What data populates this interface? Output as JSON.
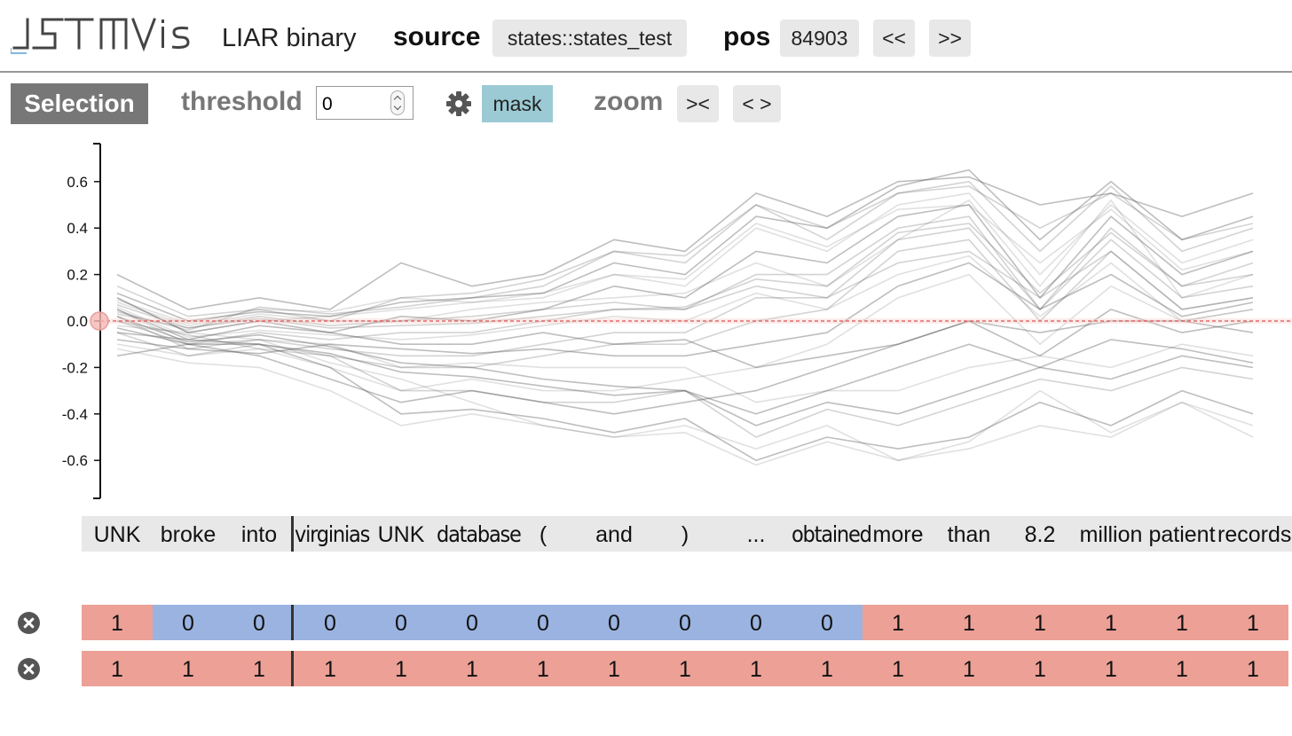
{
  "app": {
    "logo_text": "LSTMVis",
    "dataset": "LIAR binary"
  },
  "source": {
    "label": "source",
    "value": "states::states_test"
  },
  "pos": {
    "label": "pos",
    "value": "84903",
    "prev_label": "<<",
    "next_label": ">>"
  },
  "toolbar": {
    "selection_label": "Selection",
    "threshold_label": "threshold",
    "threshold_value": "0",
    "settings_icon": "gear-icon",
    "mask_label": "mask",
    "mask_color": "#9bcad4",
    "zoom_label": "zoom",
    "zoom_in_label": "><",
    "zoom_out_label": "< >"
  },
  "words": [
    "UNK",
    "broke",
    "into",
    "virginias",
    "UNK",
    "database",
    "(",
    "and",
    ")",
    "...",
    "obtained",
    "more",
    "than",
    "8.2",
    "million",
    "patient",
    "records"
  ],
  "label_rows": [
    {
      "close_icon": "close-icon",
      "values": [
        "1",
        "0",
        "0",
        "0",
        "0",
        "0",
        "0",
        "0",
        "0",
        "0",
        "0",
        "1",
        "1",
        "1",
        "1",
        "1",
        "1"
      ]
    },
    {
      "close_icon": "close-icon",
      "values": [
        "1",
        "1",
        "1",
        "1",
        "1",
        "1",
        "1",
        "1",
        "1",
        "1",
        "1",
        "1",
        "1",
        "1",
        "1",
        "1",
        "1"
      ]
    }
  ],
  "colors": {
    "label_1": "#eca096",
    "label_0": "#9ab3e0",
    "threshold_line": "#d9534f"
  },
  "chart_data": {
    "type": "line",
    "y_ticks": [
      "0.6",
      "0.4",
      "0.2",
      "0.0",
      "-0.2",
      "-0.4",
      "-0.6"
    ],
    "ylim": [
      -0.76,
      0.76
    ],
    "x": [
      "UNK",
      "broke",
      "into",
      "virginias",
      "UNK",
      "database",
      "(",
      "and",
      ")",
      "...",
      "obtained",
      "more",
      "than",
      "8.2",
      "million",
      "patient",
      "records"
    ],
    "threshold": 0.0,
    "series": [
      {
        "values": [
          0.2,
          0.05,
          0.1,
          0.05,
          0.25,
          0.15,
          0.2,
          0.35,
          0.3,
          0.55,
          0.45,
          0.6,
          0.62,
          0.5,
          0.55,
          0.45,
          0.55
        ]
      },
      {
        "values": [
          0.15,
          0.02,
          0.05,
          0.0,
          0.1,
          0.12,
          0.18,
          0.3,
          0.25,
          0.5,
          0.35,
          0.55,
          0.6,
          0.3,
          0.58,
          0.3,
          0.4
        ]
      },
      {
        "values": [
          0.1,
          -0.05,
          0.0,
          0.02,
          0.05,
          0.08,
          0.1,
          0.2,
          0.15,
          0.4,
          0.3,
          0.5,
          0.55,
          0.2,
          0.5,
          0.25,
          0.35
        ]
      },
      {
        "values": [
          0.05,
          -0.08,
          -0.02,
          -0.05,
          0.02,
          0.0,
          0.05,
          0.15,
          0.1,
          0.3,
          0.25,
          0.45,
          0.5,
          0.1,
          0.45,
          0.2,
          0.3
        ]
      },
      {
        "values": [
          0.0,
          -0.1,
          -0.05,
          -0.08,
          -0.05,
          -0.05,
          0.0,
          0.05,
          0.05,
          0.2,
          0.2,
          0.4,
          0.45,
          0.05,
          0.4,
          0.15,
          0.25
        ]
      },
      {
        "values": [
          0.08,
          -0.02,
          0.03,
          0.0,
          0.0,
          0.05,
          0.08,
          0.1,
          0.12,
          0.25,
          0.15,
          0.35,
          0.52,
          0.15,
          0.52,
          0.1,
          0.2
        ]
      },
      {
        "values": [
          0.12,
          0.0,
          0.04,
          0.02,
          0.08,
          0.1,
          0.12,
          0.25,
          0.2,
          0.45,
          0.4,
          0.58,
          0.65,
          0.35,
          0.6,
          0.35,
          0.45
        ]
      },
      {
        "values": [
          -0.05,
          -0.15,
          -0.1,
          -0.15,
          -0.2,
          -0.2,
          -0.15,
          -0.1,
          -0.1,
          0.0,
          0.05,
          0.3,
          0.35,
          0.0,
          0.3,
          0.05,
          0.1
        ]
      },
      {
        "values": [
          -0.1,
          -0.15,
          -0.12,
          -0.2,
          -0.3,
          -0.25,
          -0.3,
          -0.3,
          -0.25,
          -0.2,
          -0.1,
          0.1,
          0.2,
          -0.1,
          0.15,
          0.0,
          0.05
        ]
      },
      {
        "values": [
          -0.15,
          -0.1,
          -0.15,
          -0.25,
          -0.35,
          -0.3,
          -0.35,
          -0.4,
          -0.35,
          -0.3,
          -0.2,
          -0.1,
          0.0,
          -0.15,
          0.05,
          -0.05,
          0.0
        ]
      },
      {
        "values": [
          0.02,
          -0.12,
          -0.08,
          -0.12,
          -0.15,
          -0.15,
          -0.1,
          -0.05,
          -0.05,
          0.1,
          0.1,
          0.35,
          0.4,
          0.05,
          0.35,
          0.1,
          0.15
        ]
      },
      {
        "values": [
          -0.02,
          -0.05,
          -0.08,
          -0.18,
          -0.25,
          -0.35,
          -0.45,
          -0.5,
          -0.45,
          -0.55,
          -0.45,
          -0.6,
          -0.55,
          -0.45,
          -0.5,
          -0.35,
          -0.45
        ]
      },
      {
        "values": [
          -0.05,
          -0.08,
          -0.1,
          -0.2,
          -0.4,
          -0.38,
          -0.42,
          -0.48,
          -0.42,
          -0.6,
          -0.5,
          -0.55,
          -0.5,
          -0.35,
          -0.45,
          -0.3,
          -0.4
        ]
      },
      {
        "values": [
          0.0,
          -0.06,
          -0.12,
          -0.15,
          -0.3,
          -0.3,
          -0.35,
          -0.35,
          -0.3,
          -0.5,
          -0.38,
          -0.45,
          -0.35,
          -0.25,
          -0.3,
          -0.2,
          -0.25
        ]
      },
      {
        "values": [
          0.05,
          -0.1,
          -0.08,
          -0.1,
          -0.2,
          -0.18,
          -0.2,
          -0.2,
          -0.2,
          -0.35,
          -0.3,
          -0.3,
          -0.2,
          -0.15,
          -0.2,
          -0.1,
          -0.15
        ]
      },
      {
        "values": [
          0.1,
          -0.05,
          0.0,
          -0.05,
          -0.1,
          -0.1,
          -0.05,
          -0.1,
          -0.08,
          -0.2,
          -0.15,
          -0.1,
          0.0,
          -0.05,
          0.0,
          0.0,
          -0.05
        ]
      },
      {
        "values": [
          0.03,
          -0.03,
          0.02,
          -0.02,
          0.0,
          0.02,
          0.05,
          0.08,
          0.05,
          0.15,
          0.1,
          0.25,
          0.3,
          0.1,
          0.3,
          0.05,
          0.1
        ]
      },
      {
        "values": [
          0.06,
          -0.07,
          -0.04,
          -0.06,
          -0.08,
          -0.06,
          -0.02,
          0.02,
          0.0,
          0.12,
          0.05,
          0.2,
          0.28,
          0.02,
          0.25,
          0.0,
          0.05
        ]
      },
      {
        "values": [
          -0.08,
          -0.12,
          -0.14,
          -0.1,
          -0.12,
          -0.14,
          -0.12,
          -0.15,
          -0.15,
          -0.1,
          -0.05,
          0.15,
          0.25,
          0.05,
          0.2,
          0.02,
          0.08
        ]
      },
      {
        "values": [
          0.04,
          -0.04,
          0.06,
          0.03,
          0.06,
          0.1,
          0.15,
          0.3,
          0.28,
          0.5,
          0.4,
          0.55,
          0.58,
          0.4,
          0.55,
          0.35,
          0.42
        ]
      },
      {
        "values": [
          -0.12,
          -0.18,
          -0.2,
          -0.3,
          -0.45,
          -0.4,
          -0.45,
          -0.5,
          -0.48,
          -0.62,
          -0.52,
          -0.6,
          -0.52,
          -0.3,
          -0.48,
          -0.35,
          -0.5
        ]
      },
      {
        "values": [
          0.02,
          -0.09,
          -0.06,
          -0.11,
          -0.18,
          -0.2,
          -0.25,
          -0.28,
          -0.3,
          -0.4,
          -0.3,
          -0.2,
          -0.1,
          -0.2,
          -0.08,
          -0.12,
          -0.18
        ]
      },
      {
        "values": [
          0.07,
          -0.03,
          0.01,
          -0.03,
          -0.02,
          -0.01,
          0.02,
          0.05,
          0.06,
          0.18,
          0.15,
          0.38,
          0.42,
          0.12,
          0.38,
          0.15,
          0.2
        ]
      },
      {
        "values": [
          0.09,
          -0.01,
          0.05,
          0.04,
          0.1,
          0.08,
          0.12,
          0.2,
          0.18,
          0.42,
          0.32,
          0.48,
          0.5,
          0.25,
          0.48,
          0.22,
          0.3
        ]
      },
      {
        "values": [
          -0.03,
          -0.1,
          -0.1,
          -0.14,
          -0.22,
          -0.24,
          -0.28,
          -0.32,
          -0.3,
          -0.45,
          -0.35,
          -0.4,
          -0.3,
          -0.2,
          -0.25,
          -0.15,
          -0.2
        ]
      }
    ]
  }
}
